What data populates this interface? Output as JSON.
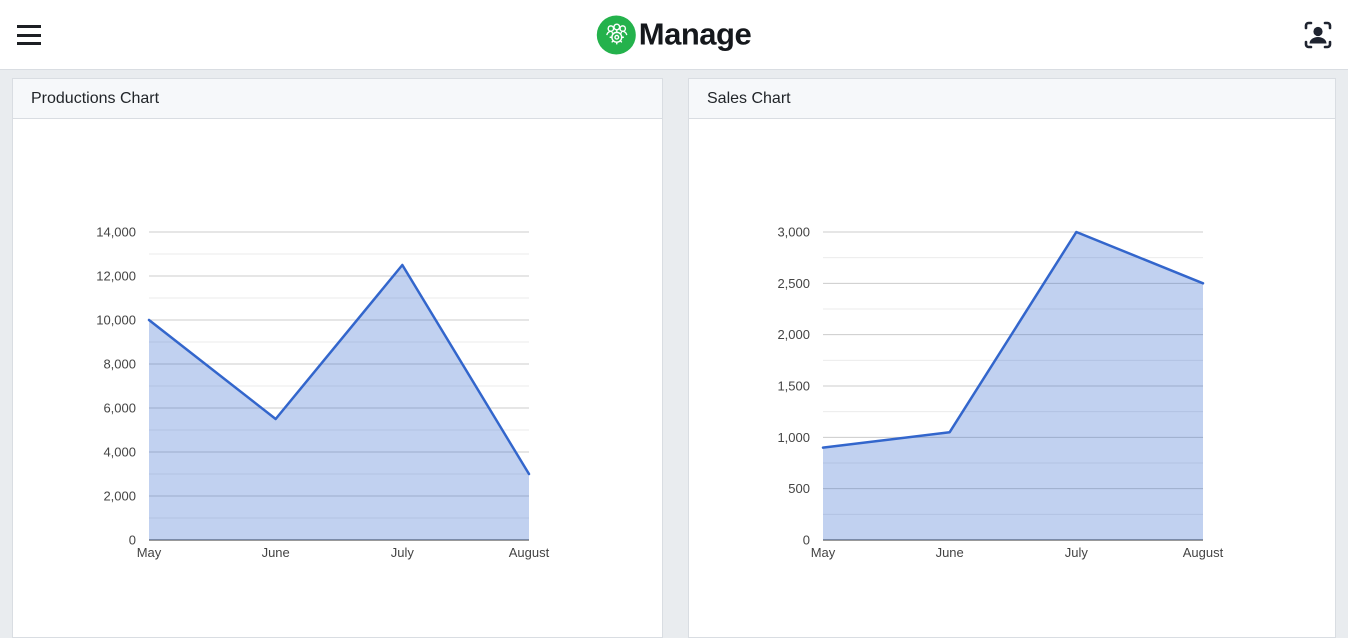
{
  "header": {
    "logo_text": "Manage"
  },
  "cards": [
    {
      "title": "Productions Chart"
    },
    {
      "title": "Sales Chart"
    }
  ],
  "chart_data": [
    {
      "type": "area",
      "title": "Productions Chart",
      "categories": [
        "May",
        "June",
        "July",
        "August"
      ],
      "values": [
        10000,
        5500,
        12500,
        3000
      ],
      "xlabel": "",
      "ylabel": "",
      "ylim": [
        0,
        14000
      ],
      "ytick_step": 2000,
      "yminor_step": 1000,
      "grid": true,
      "legend": "none",
      "line_color": "#3366cc",
      "fill_color": "rgba(51,102,204,0.30)",
      "major_grid_color": "#cccccc",
      "minor_grid_color": "#ebebeb",
      "baseline_color": "#333333"
    },
    {
      "type": "area",
      "title": "Sales Chart",
      "categories": [
        "May",
        "June",
        "July",
        "August"
      ],
      "values": [
        900,
        1050,
        3000,
        2500
      ],
      "xlabel": "",
      "ylabel": "",
      "ylim": [
        0,
        3000
      ],
      "ytick_step": 500,
      "yminor_step": 250,
      "grid": true,
      "legend": "none",
      "line_color": "#3366cc",
      "fill_color": "rgba(51,102,204,0.30)",
      "major_grid_color": "#cccccc",
      "minor_grid_color": "#ebebeb",
      "baseline_color": "#333333"
    }
  ]
}
